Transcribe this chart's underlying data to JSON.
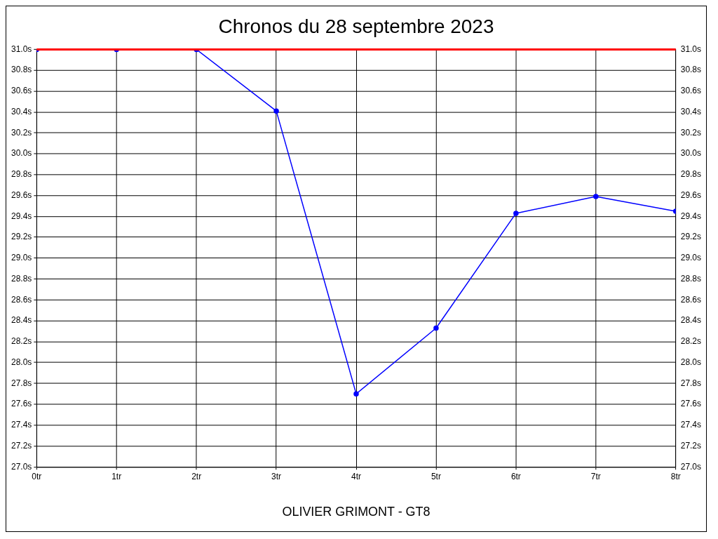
{
  "chart_data": {
    "type": "line",
    "title": "Chronos du 28 septembre 2023",
    "annotations": [
      "OLIVIER GRIMONT - GT8"
    ],
    "x": [
      0,
      1,
      2,
      3,
      4,
      5,
      6,
      7,
      8
    ],
    "series": [
      {
        "color": "#0000ff",
        "values": [
          31.0,
          31.0,
          31.0,
          30.41,
          27.7,
          28.33,
          29.43,
          29.59,
          29.45
        ]
      }
    ],
    "xlim": [
      0,
      8
    ],
    "xticks": [
      {
        "value": 0,
        "label": "0tr"
      },
      {
        "value": 1,
        "label": "1tr"
      },
      {
        "value": 2,
        "label": "2tr"
      },
      {
        "value": 3,
        "label": "3tr"
      },
      {
        "value": 4,
        "label": "4tr"
      },
      {
        "value": 5,
        "label": "5tr"
      },
      {
        "value": 6,
        "label": "6tr"
      },
      {
        "value": 7,
        "label": "7tr"
      },
      {
        "value": 8,
        "label": "8tr"
      }
    ],
    "ylim": [
      27.0,
      31.0
    ],
    "yticks": [
      {
        "value": 27.0,
        "label": "27.0s"
      },
      {
        "value": 27.2,
        "label": "27.2s"
      },
      {
        "value": 27.4,
        "label": "27.4s"
      },
      {
        "value": 27.6,
        "label": "27.6s"
      },
      {
        "value": 27.8,
        "label": "27.8s"
      },
      {
        "value": 28.0,
        "label": "28.0s"
      },
      {
        "value": 28.2,
        "label": "28.2s"
      },
      {
        "value": 28.4,
        "label": "28.4s"
      },
      {
        "value": 28.6,
        "label": "28.6s"
      },
      {
        "value": 28.8,
        "label": "28.8s"
      },
      {
        "value": 29.0,
        "label": "29.0s"
      },
      {
        "value": 29.2,
        "label": "29.2s"
      },
      {
        "value": 29.4,
        "label": "29.4s"
      },
      {
        "value": 29.6,
        "label": "29.6s"
      },
      {
        "value": 29.8,
        "label": "29.8s"
      },
      {
        "value": 30.0,
        "label": "30.0s"
      },
      {
        "value": 30.2,
        "label": "30.2s"
      },
      {
        "value": 30.4,
        "label": "30.4s"
      },
      {
        "value": 30.6,
        "label": "30.6s"
      },
      {
        "value": 30.8,
        "label": "30.8s"
      },
      {
        "value": 31.0,
        "label": "31.0s"
      }
    ],
    "y2lim": [
      27.0,
      31.0
    ],
    "y2ticks": [
      {
        "value": 27.0,
        "label": "27.0s"
      },
      {
        "value": 27.2,
        "label": "27.2s"
      },
      {
        "value": 27.4,
        "label": "27.4s"
      },
      {
        "value": 27.6,
        "label": "27.6s"
      },
      {
        "value": 27.8,
        "label": "27.8s"
      },
      {
        "value": 28.0,
        "label": "28.0s"
      },
      {
        "value": 28.2,
        "label": "28.2s"
      },
      {
        "value": 28.4,
        "label": "28.4s"
      },
      {
        "value": 28.6,
        "label": "28.6s"
      },
      {
        "value": 28.8,
        "label": "28.8s"
      },
      {
        "value": 29.0,
        "label": "29.0s"
      },
      {
        "value": 29.2,
        "label": "29.2s"
      },
      {
        "value": 29.4,
        "label": "29.4s"
      },
      {
        "value": 29.6,
        "label": "29.6s"
      },
      {
        "value": 29.8,
        "label": "29.8s"
      },
      {
        "value": 30.0,
        "label": "30.0s"
      },
      {
        "value": 30.2,
        "label": "30.2s"
      },
      {
        "value": 30.4,
        "label": "30.4s"
      },
      {
        "value": 30.6,
        "label": "30.6s"
      },
      {
        "value": 30.8,
        "label": "30.8s"
      },
      {
        "value": 31.0,
        "label": "31.0s"
      }
    ],
    "ref_lines": [
      {
        "axis": "y",
        "value": 31.0,
        "color": "#ff0000"
      }
    ],
    "grid": true,
    "legend": false,
    "marker": "circle",
    "line_style": "solid"
  }
}
